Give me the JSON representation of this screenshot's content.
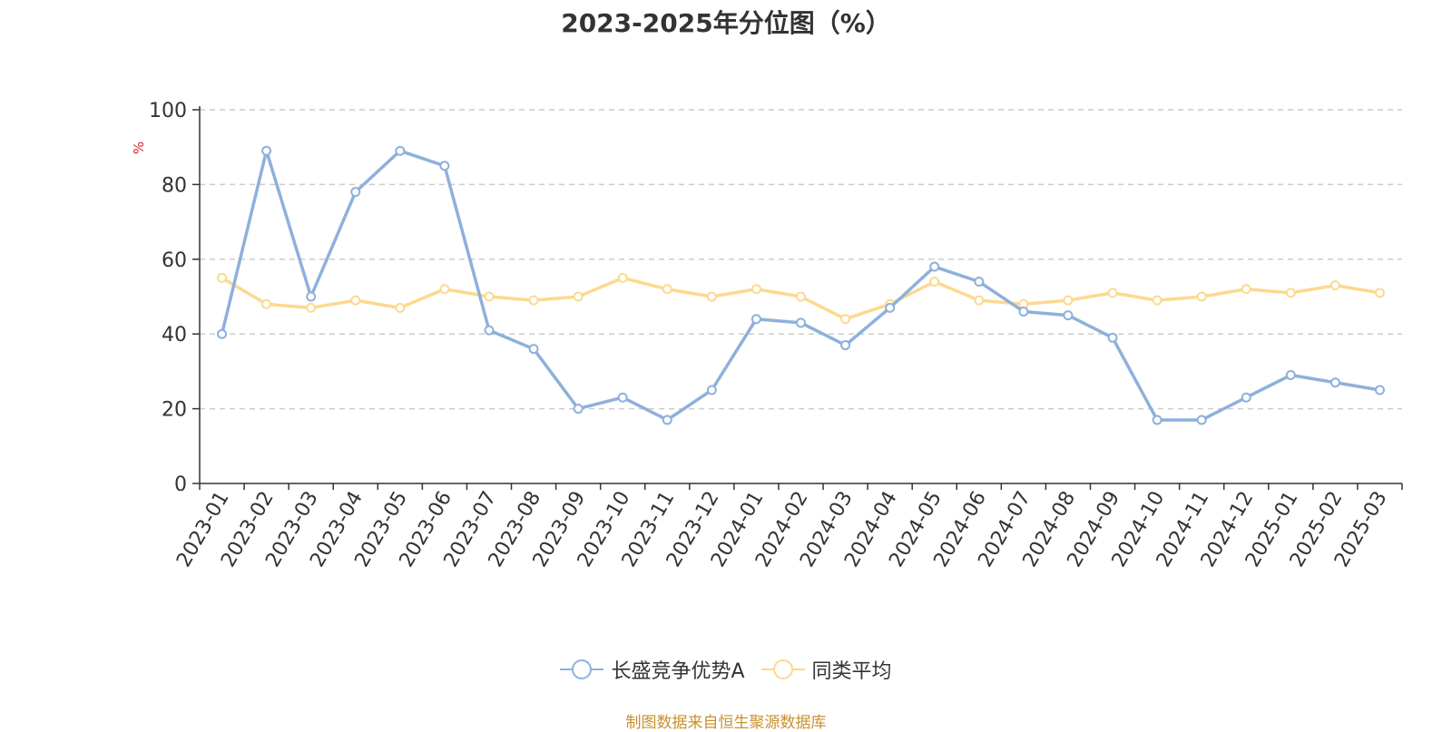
{
  "chart_data": {
    "type": "line",
    "title": "2023-2025年分位图（%）",
    "ylabel": "%",
    "ylim": [
      0,
      100
    ],
    "yticks": [
      0,
      20,
      40,
      60,
      80,
      100
    ],
    "grid": true,
    "legend_position": "bottom",
    "categories": [
      "2023-01",
      "2023-02",
      "2023-03",
      "2023-04",
      "2023-05",
      "2023-06",
      "2023-07",
      "2023-08",
      "2023-09",
      "2023-10",
      "2023-11",
      "2023-12",
      "2024-01",
      "2024-02",
      "2024-03",
      "2024-04",
      "2024-05",
      "2024-06",
      "2024-07",
      "2024-08",
      "2024-09",
      "2024-10",
      "2024-11",
      "2024-12",
      "2025-01",
      "2025-02",
      "2025-03"
    ],
    "series": [
      {
        "name": "长盛竞争优势A",
        "color": "#8eb0dc",
        "values": [
          40,
          89,
          50,
          78,
          89,
          85,
          41,
          36,
          20,
          23,
          17,
          25,
          44,
          43,
          37,
          47,
          58,
          54,
          46,
          45,
          39,
          17,
          17,
          23,
          29,
          27,
          25
        ]
      },
      {
        "name": "同类平均",
        "color": "#fcd98f",
        "values": [
          55,
          48,
          47,
          49,
          47,
          52,
          50,
          49,
          50,
          55,
          52,
          50,
          52,
          50,
          44,
          48,
          54,
          49,
          48,
          49,
          51,
          49,
          50,
          52,
          51,
          53,
          51
        ]
      }
    ]
  },
  "footer": {
    "source": "制图数据来自恒生聚源数据库"
  }
}
